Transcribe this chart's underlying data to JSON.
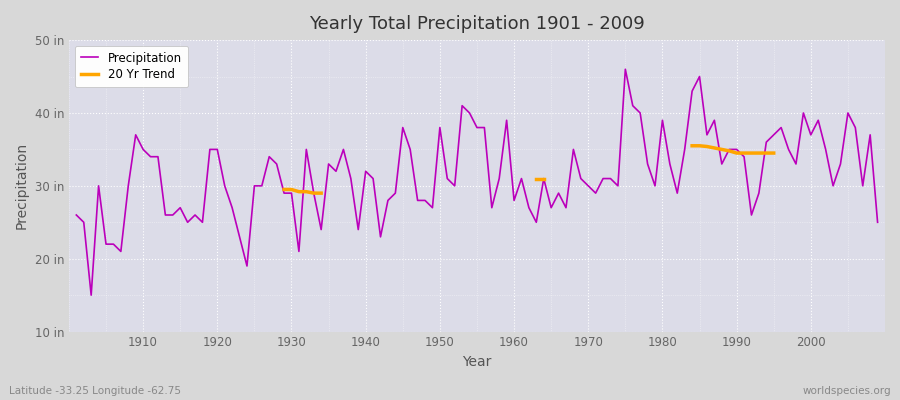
{
  "title": "Yearly Total Precipitation 1901 - 2009",
  "xlabel": "Year",
  "ylabel": "Precipitation",
  "figure_bg": "#d8d8d8",
  "plot_bg": "#dcdce8",
  "precip_color": "#bb00bb",
  "trend_color": "#ffa500",
  "ylim": [
    10,
    50
  ],
  "yticks": [
    10,
    20,
    30,
    40,
    50
  ],
  "ytick_labels": [
    "10 in",
    "20 in",
    "30 in",
    "40 in",
    "50 in"
  ],
  "xlim": [
    1900,
    2010
  ],
  "xticks": [
    1910,
    1920,
    1930,
    1940,
    1950,
    1960,
    1970,
    1980,
    1990,
    2000
  ],
  "years": [
    1901,
    1902,
    1903,
    1904,
    1905,
    1906,
    1907,
    1908,
    1909,
    1910,
    1911,
    1912,
    1913,
    1914,
    1915,
    1916,
    1917,
    1918,
    1919,
    1920,
    1921,
    1922,
    1923,
    1924,
    1925,
    1926,
    1927,
    1928,
    1929,
    1930,
    1931,
    1932,
    1933,
    1934,
    1935,
    1936,
    1937,
    1938,
    1939,
    1940,
    1941,
    1942,
    1943,
    1944,
    1945,
    1946,
    1947,
    1948,
    1949,
    1950,
    1951,
    1952,
    1953,
    1954,
    1955,
    1956,
    1957,
    1958,
    1959,
    1960,
    1961,
    1962,
    1963,
    1964,
    1965,
    1966,
    1967,
    1968,
    1969,
    1970,
    1971,
    1972,
    1973,
    1974,
    1975,
    1976,
    1977,
    1978,
    1979,
    1980,
    1981,
    1982,
    1983,
    1984,
    1985,
    1986,
    1987,
    1988,
    1989,
    1990,
    1991,
    1992,
    1993,
    1994,
    1995,
    1996,
    1997,
    1998,
    1999,
    2000,
    2001,
    2002,
    2003,
    2004,
    2005,
    2006,
    2007,
    2008,
    2009
  ],
  "precip": [
    26,
    25,
    15,
    30,
    22,
    22,
    21,
    30,
    37,
    35,
    34,
    34,
    26,
    26,
    27,
    25,
    26,
    25,
    35,
    35,
    30,
    27,
    23,
    19,
    30,
    30,
    34,
    33,
    29,
    29,
    21,
    35,
    29,
    24,
    33,
    32,
    35,
    31,
    24,
    32,
    31,
    23,
    28,
    29,
    38,
    35,
    28,
    28,
    27,
    38,
    31,
    30,
    41,
    40,
    38,
    38,
    27,
    31,
    39,
    28,
    31,
    27,
    25,
    31,
    27,
    29,
    27,
    35,
    31,
    30,
    29,
    31,
    31,
    30,
    46,
    41,
    40,
    33,
    30,
    39,
    33,
    29,
    35,
    43,
    45,
    37,
    39,
    33,
    35,
    35,
    34,
    26,
    29,
    36,
    37,
    38,
    35,
    33,
    40,
    37,
    39,
    35,
    30,
    33,
    40,
    38,
    30,
    37,
    25
  ],
  "trend_seg1_years": [
    1929,
    1930,
    1931,
    1932,
    1933,
    1934
  ],
  "trend_seg1_vals": [
    29.5,
    29.5,
    29.2,
    29.2,
    29.0,
    29.0
  ],
  "trend_seg2_years": [
    1963,
    1964
  ],
  "trend_seg2_vals": [
    31.0,
    31.0
  ],
  "trend_seg3_years": [
    1984,
    1985,
    1986,
    1987,
    1988,
    1989,
    1990,
    1991,
    1992,
    1993,
    1994,
    1995
  ],
  "trend_seg3_vals": [
    35.5,
    35.5,
    35.4,
    35.2,
    35.0,
    34.8,
    34.5,
    34.5,
    34.5,
    34.5,
    34.5,
    34.5
  ],
  "footer_left": "Latitude -33.25 Longitude -62.75",
  "footer_right": "worldspecies.org",
  "legend_labels": [
    "Precipitation",
    "20 Yr Trend"
  ]
}
